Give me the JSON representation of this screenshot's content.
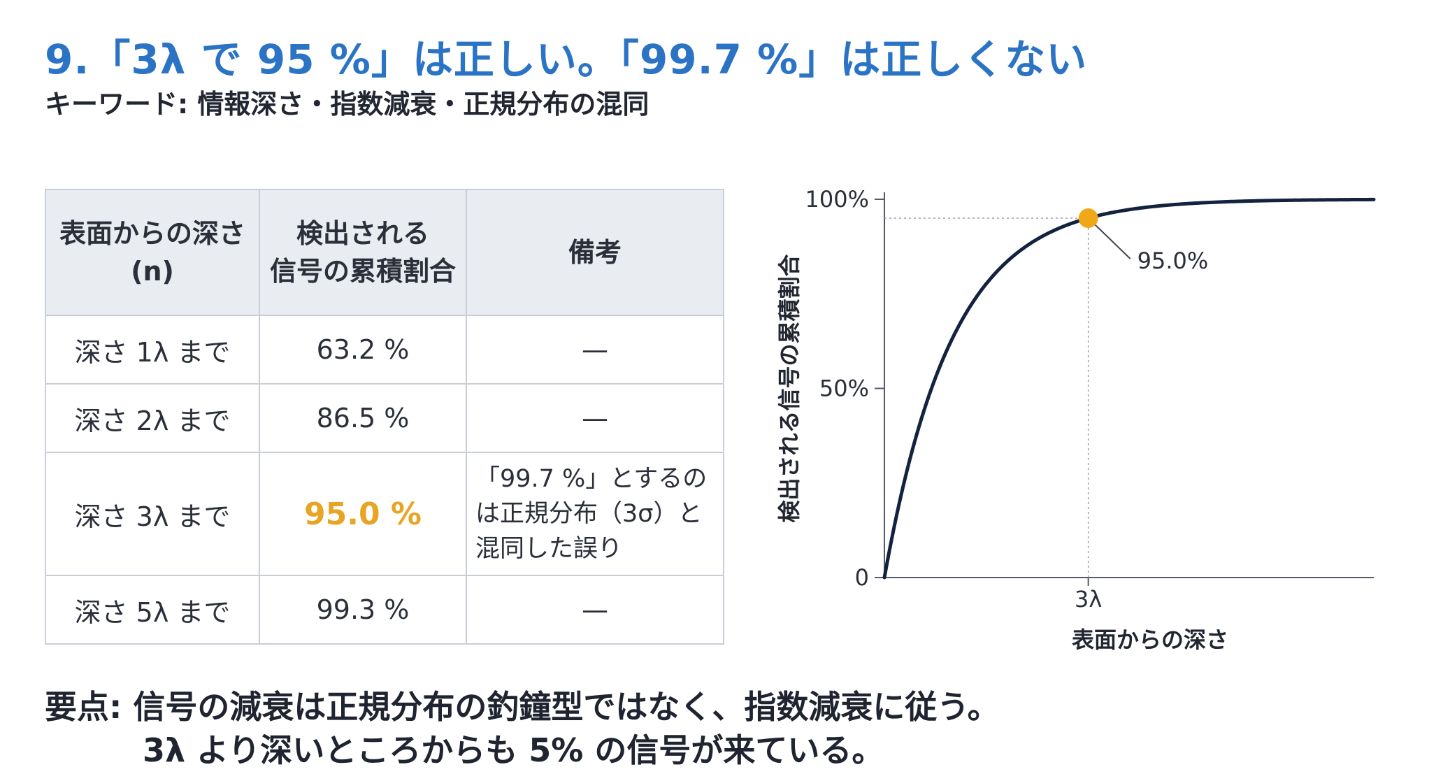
{
  "header": {
    "title": "9.「3λ で 95 %」は正しい。「99.7 %」は正しくない",
    "subtitle": "キーワード: 情報深さ・指数減衰・正規分布の混同"
  },
  "table": {
    "headers": {
      "depth_line1": "表面からの深さ",
      "depth_line2": "(n)",
      "signal_line1": "検出される",
      "signal_line2": "信号の累積割合",
      "note": "備考"
    },
    "rows": [
      {
        "depth": "深さ 1λ まで",
        "value": "63.2 %",
        "note": "—"
      },
      {
        "depth": "深さ 2λ まで",
        "value": "86.5 %",
        "note": "—"
      },
      {
        "depth": "深さ 3λ まで",
        "value": "95.0 %",
        "note_line1": "「99.7 %」とするの",
        "note_line2": "は正規分布（3σ）と",
        "note_line3": "混同した誤り"
      },
      {
        "depth": "深さ 5λ まで",
        "value": "99.3 %",
        "note": "—"
      }
    ]
  },
  "colors": {
    "title": "#2a73c5",
    "highlight": "#e8a423",
    "curve": "#13233f",
    "marker": "#f0a818"
  },
  "chart_data": {
    "type": "line",
    "x_domain_lambda": [
      0,
      7.2
    ],
    "ylim": [
      0,
      100
    ],
    "y_ticks": [
      "0",
      "50%",
      "100%"
    ],
    "x_tick_labels": [
      "3λ"
    ],
    "ylabel": "検出される信号の累積割合",
    "xlabel": "表面からの深さ",
    "series": [
      {
        "function": "100*(1-exp(-x))"
      }
    ],
    "annotation": {
      "x": 3,
      "y": 95.0,
      "label": "95.0%"
    },
    "grid": false
  },
  "summary": {
    "line1": "要点: 信号の減衰は正規分布の釣鐘型ではなく、指数減衰に従う。",
    "line2": "3λ より深いところからも 5% の信号が来ている。"
  }
}
